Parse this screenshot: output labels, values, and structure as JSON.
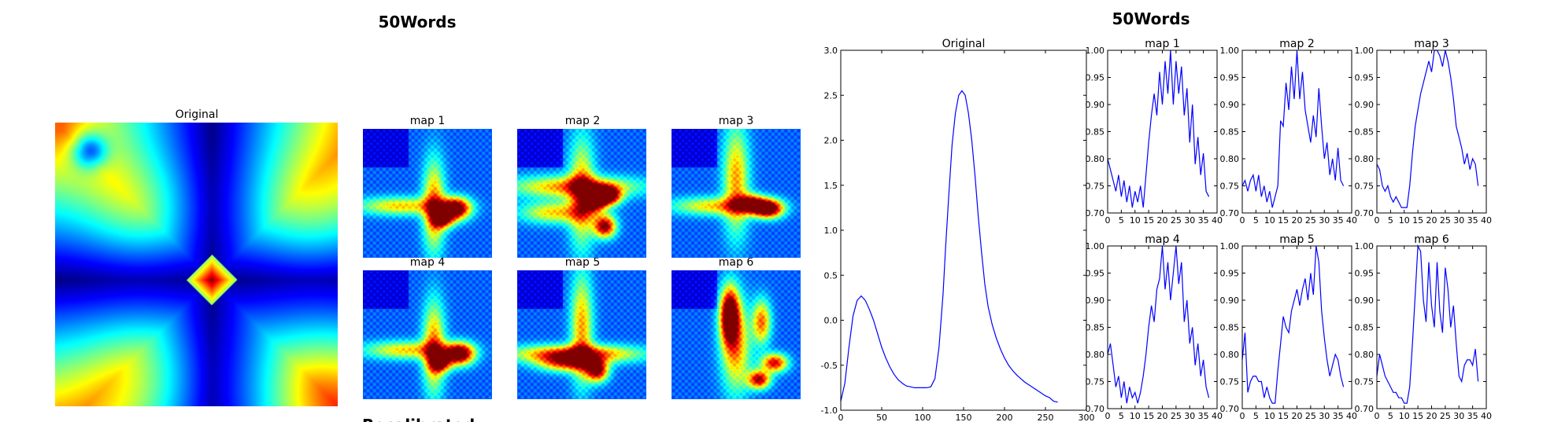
{
  "left": {
    "title": "50Words",
    "original_title": "Original",
    "map_titles": [
      "map 1",
      "map 2",
      "map 3",
      "map 4",
      "map 5",
      "map 6"
    ],
    "bottom_fragment": "Recalibrated",
    "colormap": "jet"
  },
  "right": {
    "title": "50Words"
  },
  "chart_data": [
    {
      "type": "line",
      "title": "Original",
      "xlim": [
        0,
        300
      ],
      "ylim": [
        -1.0,
        3.0
      ],
      "xticks": [
        0,
        50,
        100,
        150,
        200,
        250,
        300
      ],
      "yticks": [
        -1.0,
        -0.5,
        0.0,
        0.5,
        1.0,
        1.5,
        2.0,
        2.5,
        3.0
      ],
      "series": [
        {
          "color": "#0000ff",
          "x": [
            0,
            5,
            10,
            15,
            20,
            25,
            30,
            35,
            40,
            45,
            50,
            55,
            60,
            65,
            70,
            75,
            80,
            85,
            90,
            95,
            100,
            105,
            110,
            115,
            120,
            125,
            128,
            132,
            136,
            140,
            144,
            148,
            152,
            156,
            160,
            164,
            168,
            172,
            176,
            180,
            185,
            190,
            195,
            200,
            205,
            210,
            215,
            220,
            225,
            230,
            235,
            240,
            245,
            250,
            255,
            260,
            265
          ],
          "y": [
            -0.9,
            -0.7,
            -0.3,
            0.05,
            0.22,
            0.27,
            0.22,
            0.12,
            0.0,
            -0.15,
            -0.3,
            -0.42,
            -0.52,
            -0.6,
            -0.66,
            -0.7,
            -0.73,
            -0.74,
            -0.75,
            -0.75,
            -0.75,
            -0.75,
            -0.74,
            -0.65,
            -0.3,
            0.3,
            0.8,
            1.4,
            1.95,
            2.3,
            2.5,
            2.55,
            2.5,
            2.3,
            2.0,
            1.6,
            1.15,
            0.75,
            0.4,
            0.15,
            -0.05,
            -0.2,
            -0.32,
            -0.42,
            -0.5,
            -0.56,
            -0.61,
            -0.65,
            -0.69,
            -0.72,
            -0.75,
            -0.78,
            -0.81,
            -0.84,
            -0.86,
            -0.9,
            -0.91
          ]
        }
      ]
    },
    {
      "type": "line",
      "title": "map 1",
      "xlim": [
        0,
        40
      ],
      "ylim": [
        0.7,
        1.0
      ],
      "xticks": [
        0,
        5,
        10,
        15,
        20,
        25,
        30,
        35,
        40
      ],
      "yticks": [
        "0.70",
        "0.75",
        "0.80",
        "0.85",
        "0.90",
        "0.95",
        "1.00"
      ],
      "series": [
        {
          "color": "#0000ff",
          "x": [
            0,
            1,
            2,
            3,
            4,
            5,
            6,
            7,
            8,
            9,
            10,
            11,
            12,
            13,
            14,
            15,
            16,
            17,
            18,
            19,
            20,
            21,
            22,
            23,
            24,
            25,
            26,
            27,
            28,
            29,
            30,
            31,
            32,
            33,
            34,
            35,
            36,
            37
          ],
          "y": [
            0.8,
            0.78,
            0.76,
            0.74,
            0.77,
            0.73,
            0.76,
            0.72,
            0.75,
            0.71,
            0.74,
            0.72,
            0.75,
            0.71,
            0.77,
            0.83,
            0.88,
            0.92,
            0.88,
            0.96,
            0.9,
            0.98,
            0.92,
            1.0,
            0.9,
            0.98,
            0.92,
            0.97,
            0.88,
            0.93,
            0.83,
            0.9,
            0.79,
            0.84,
            0.77,
            0.81,
            0.74,
            0.73
          ]
        }
      ]
    },
    {
      "type": "line",
      "title": "map 2",
      "xlim": [
        0,
        40
      ],
      "ylim": [
        0.7,
        1.0
      ],
      "xticks": [
        0,
        5,
        10,
        15,
        20,
        25,
        30,
        35,
        40
      ],
      "yticks": [
        "0.70",
        "0.75",
        "0.80",
        "0.85",
        "0.90",
        "0.95",
        "1.00"
      ],
      "series": [
        {
          "color": "#0000ff",
          "x": [
            0,
            1,
            2,
            3,
            4,
            5,
            6,
            7,
            8,
            9,
            10,
            11,
            12,
            13,
            14,
            15,
            16,
            17,
            18,
            19,
            20,
            21,
            22,
            23,
            24,
            25,
            26,
            27,
            28,
            29,
            30,
            31,
            32,
            33,
            34,
            35,
            36,
            37
          ],
          "y": [
            0.75,
            0.76,
            0.74,
            0.76,
            0.77,
            0.74,
            0.77,
            0.73,
            0.75,
            0.72,
            0.74,
            0.71,
            0.73,
            0.75,
            0.87,
            0.86,
            0.94,
            0.89,
            0.97,
            0.91,
            1.0,
            0.91,
            0.96,
            0.89,
            0.86,
            0.83,
            0.88,
            0.84,
            0.93,
            0.86,
            0.8,
            0.83,
            0.77,
            0.8,
            0.76,
            0.82,
            0.76,
            0.75
          ]
        }
      ]
    },
    {
      "type": "line",
      "title": "map 3",
      "xlim": [
        0,
        40
      ],
      "ylim": [
        0.7,
        1.0
      ],
      "xticks": [
        0,
        5,
        10,
        15,
        20,
        25,
        30,
        35,
        40
      ],
      "yticks": [
        "0.70",
        "0.75",
        "0.80",
        "0.85",
        "0.90",
        "0.95",
        "1.00"
      ],
      "series": [
        {
          "color": "#0000ff",
          "x": [
            0,
            1,
            2,
            3,
            4,
            5,
            6,
            7,
            8,
            9,
            10,
            11,
            12,
            13,
            14,
            15,
            16,
            17,
            18,
            19,
            20,
            21,
            22,
            23,
            24,
            25,
            26,
            27,
            28,
            29,
            30,
            31,
            32,
            33,
            34,
            35,
            36,
            37
          ],
          "y": [
            0.79,
            0.78,
            0.75,
            0.74,
            0.75,
            0.73,
            0.72,
            0.73,
            0.72,
            0.71,
            0.71,
            0.71,
            0.75,
            0.81,
            0.86,
            0.89,
            0.92,
            0.94,
            0.96,
            0.98,
            0.96,
            1.0,
            1.0,
            0.99,
            0.97,
            1.0,
            0.98,
            0.95,
            0.91,
            0.86,
            0.84,
            0.82,
            0.79,
            0.81,
            0.78,
            0.8,
            0.79,
            0.75
          ]
        }
      ]
    },
    {
      "type": "line",
      "title": "map 4",
      "xlim": [
        0,
        40
      ],
      "ylim": [
        0.7,
        1.0
      ],
      "xticks": [
        0,
        5,
        10,
        15,
        20,
        25,
        30,
        35,
        40
      ],
      "yticks": [
        "0.70",
        "0.75",
        "0.80",
        "0.85",
        "0.90",
        "0.95",
        "1.00"
      ],
      "series": [
        {
          "color": "#0000ff",
          "x": [
            0,
            1,
            2,
            3,
            4,
            5,
            6,
            7,
            8,
            9,
            10,
            11,
            12,
            13,
            14,
            15,
            16,
            17,
            18,
            19,
            20,
            21,
            22,
            23,
            24,
            25,
            26,
            27,
            28,
            29,
            30,
            31,
            32,
            33,
            34,
            35,
            36,
            37
          ],
          "y": [
            0.8,
            0.82,
            0.78,
            0.74,
            0.76,
            0.72,
            0.75,
            0.71,
            0.74,
            0.72,
            0.73,
            0.71,
            0.73,
            0.76,
            0.8,
            0.85,
            0.89,
            0.86,
            0.92,
            0.94,
            1.0,
            0.92,
            0.97,
            0.9,
            0.95,
            1.0,
            0.93,
            0.97,
            0.86,
            0.9,
            0.82,
            0.85,
            0.78,
            0.82,
            0.76,
            0.79,
            0.74,
            0.72
          ]
        }
      ]
    },
    {
      "type": "line",
      "title": "map 5",
      "xlim": [
        0,
        40
      ],
      "ylim": [
        0.7,
        1.0
      ],
      "xticks": [
        0,
        5,
        10,
        15,
        20,
        25,
        30,
        35,
        40
      ],
      "yticks": [
        "0.70",
        "0.75",
        "0.80",
        "0.85",
        "0.90",
        "0.95",
        "1.00"
      ],
      "series": [
        {
          "color": "#0000ff",
          "x": [
            0,
            1,
            2,
            3,
            4,
            5,
            6,
            7,
            8,
            9,
            10,
            11,
            12,
            13,
            14,
            15,
            16,
            17,
            18,
            19,
            20,
            21,
            22,
            23,
            24,
            25,
            26,
            27,
            28,
            29,
            30,
            31,
            32,
            33,
            34,
            35,
            36,
            37
          ],
          "y": [
            0.79,
            0.84,
            0.73,
            0.75,
            0.76,
            0.76,
            0.75,
            0.75,
            0.72,
            0.74,
            0.72,
            0.71,
            0.71,
            0.77,
            0.82,
            0.87,
            0.85,
            0.84,
            0.88,
            0.9,
            0.92,
            0.89,
            0.92,
            0.94,
            0.9,
            0.95,
            0.91,
            1.0,
            0.97,
            0.88,
            0.83,
            0.79,
            0.76,
            0.78,
            0.8,
            0.79,
            0.76,
            0.74
          ]
        }
      ]
    },
    {
      "type": "line",
      "title": "map 6",
      "xlim": [
        0,
        40
      ],
      "ylim": [
        0.7,
        1.0
      ],
      "xticks": [
        0,
        5,
        10,
        15,
        20,
        25,
        30,
        35,
        40
      ],
      "yticks": [
        "0.70",
        "0.75",
        "0.80",
        "0.85",
        "0.90",
        "0.95",
        "1.00"
      ],
      "series": [
        {
          "color": "#0000ff",
          "x": [
            0,
            1,
            2,
            3,
            4,
            5,
            6,
            7,
            8,
            9,
            10,
            11,
            12,
            13,
            14,
            15,
            16,
            17,
            18,
            19,
            20,
            21,
            22,
            23,
            24,
            25,
            26,
            27,
            28,
            29,
            30,
            31,
            32,
            33,
            34,
            35,
            36,
            37
          ],
          "y": [
            0.76,
            0.8,
            0.78,
            0.76,
            0.75,
            0.74,
            0.73,
            0.73,
            0.72,
            0.72,
            0.71,
            0.71,
            0.74,
            0.82,
            0.91,
            1.0,
            0.99,
            0.9,
            0.86,
            0.97,
            0.89,
            0.85,
            0.97,
            0.88,
            0.84,
            0.96,
            0.92,
            0.85,
            0.89,
            0.82,
            0.76,
            0.75,
            0.78,
            0.79,
            0.79,
            0.78,
            0.81,
            0.75
          ]
        }
      ]
    }
  ]
}
